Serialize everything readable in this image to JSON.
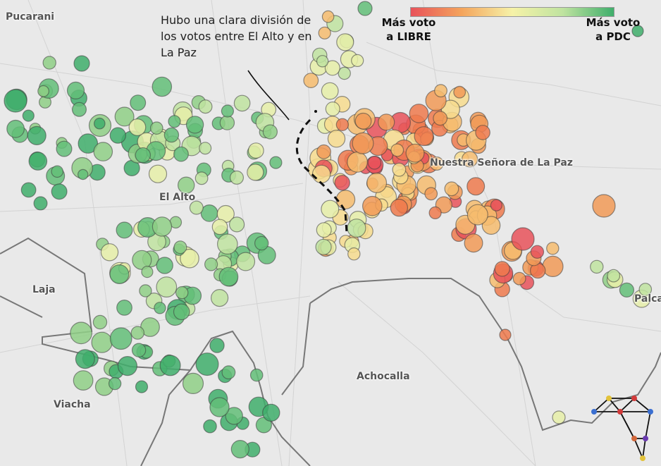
{
  "annotation": {
    "text": "Hubo una clara división de los votos entre El Alto y en La Paz"
  },
  "legend": {
    "left_line1": "Más voto",
    "left_line2": "a LIBRE",
    "right_line1": "Más voto",
    "right_line2": "a PDC",
    "color_low": "#e8525a",
    "color_high": "#3fae6b"
  },
  "places": {
    "pucarani": "Pucarani",
    "el_alto": "El Alto",
    "la_paz": "Nuestra Señora de La Paz",
    "laja": "Laja",
    "achocalla": "Achocalla",
    "viacha": "Viacha",
    "palca": "Palca"
  },
  "colors": {
    "background": "#e9e9e9",
    "border": "#777777",
    "dashed_divide": "#111111"
  },
  "icons": {
    "logo": "network-logo-icon"
  }
}
